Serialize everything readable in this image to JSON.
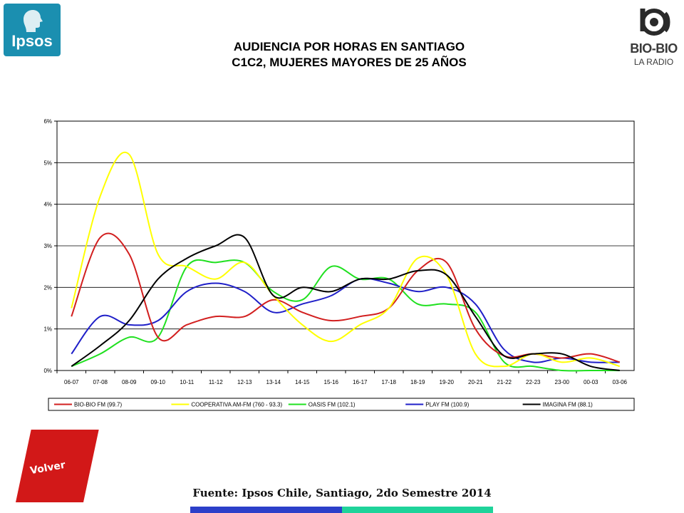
{
  "header": {
    "title_line1": "AUDIENCIA POR HORAS EN SANTIAGO",
    "title_line2": "C1C2, MUJERES MAYORES DE 25 AÑOS",
    "logo_left": "Ipsos",
    "logo_right_name": "BIO-BIO",
    "logo_right_sub": "LA RADIO"
  },
  "footer": {
    "source": "Fuente: Ipsos Chile, Santiago, 2do Semestre 2014",
    "back_button": "Volver",
    "bar_colors": [
      "#2c3fc9",
      "#1fd39a"
    ]
  },
  "chart_data": {
    "type": "line",
    "title": "",
    "xlabel": "",
    "ylabel": "",
    "ylim": [
      0,
      6
    ],
    "yticks": [
      "0%",
      "1%",
      "2%",
      "3%",
      "4%",
      "5%",
      "6%"
    ],
    "grid": true,
    "legend_position": "bottom",
    "categories": [
      "06-07",
      "07-08",
      "08-09",
      "09-10",
      "10-11",
      "11-12",
      "12-13",
      "13-14",
      "14-15",
      "15-16",
      "16-17",
      "17-18",
      "18-19",
      "19-20",
      "20-21",
      "21-22",
      "22-23",
      "23-00",
      "00-03",
      "03-06"
    ],
    "series": [
      {
        "name": "BIO-BIO FM (99.7)",
        "color": "#d21f1f",
        "values": [
          1.3,
          3.2,
          2.8,
          0.8,
          1.1,
          1.3,
          1.3,
          1.7,
          1.4,
          1.2,
          1.3,
          1.5,
          2.4,
          2.6,
          1.0,
          0.35,
          0.4,
          0.3,
          0.4,
          0.2
        ]
      },
      {
        "name": "COOPERATIVA AM-FM (760 - 93.3)",
        "color": "#ffff00",
        "values": [
          1.5,
          4.2,
          5.2,
          2.8,
          2.5,
          2.2,
          2.6,
          1.8,
          1.1,
          0.7,
          1.1,
          1.5,
          2.7,
          2.3,
          0.4,
          0.1,
          0.4,
          0.2,
          0.3,
          0.1
        ]
      },
      {
        "name": "OASIS FM (102.1)",
        "color": "#1fe01f",
        "values": [
          0.1,
          0.4,
          0.8,
          0.8,
          2.5,
          2.6,
          2.6,
          1.9,
          1.7,
          2.5,
          2.2,
          2.2,
          1.6,
          1.6,
          1.4,
          0.2,
          0.1,
          0.0,
          0.0,
          0.0
        ]
      },
      {
        "name": "PLAY FM (100.9)",
        "color": "#1f1fc8",
        "values": [
          0.4,
          1.3,
          1.1,
          1.2,
          1.9,
          2.1,
          1.9,
          1.4,
          1.6,
          1.8,
          2.2,
          2.1,
          1.9,
          2.0,
          1.6,
          0.5,
          0.2,
          0.3,
          0.2,
          0.2
        ]
      },
      {
        "name": "IMAGINA FM (88.1)",
        "color": "#000000",
        "values": [
          0.1,
          0.6,
          1.2,
          2.2,
          2.7,
          3.0,
          3.2,
          1.8,
          2.0,
          1.9,
          2.2,
          2.2,
          2.4,
          2.3,
          1.3,
          0.35,
          0.4,
          0.4,
          0.1,
          0.0
        ]
      }
    ]
  }
}
